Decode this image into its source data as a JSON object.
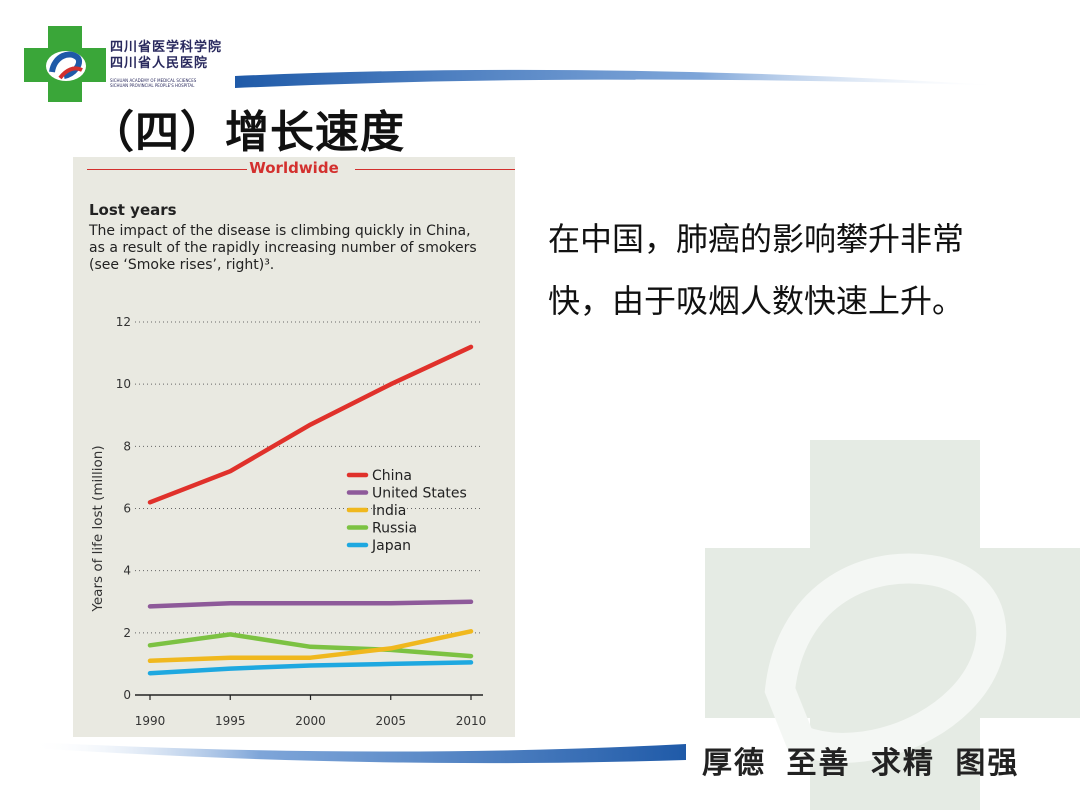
{
  "slide": {
    "heading": "（四）增长速度",
    "body": "在中国，肺癌的影响攀升非常快，由于吸烟人数快速上升。",
    "motto": "厚德 至善 求精 图强",
    "institution": {
      "line1": "四川省医学科学院",
      "line2": "四川省人民医院",
      "en1": "SICHUAN ACADEMY OF MEDICAL SCIENCES",
      "en2": "SICHUAN PROVINCIAL PEOPLE'S HOSPITAL"
    }
  },
  "colors": {
    "accent_green": "#3aa639",
    "brand_blue": "#1f5aa8",
    "worldwide_red": "#d3302e"
  },
  "chart_data": {
    "type": "line",
    "section_label": "Worldwide",
    "title": "Lost years",
    "subtitle": "The impact of the disease is climbing quickly in China, as a result of the rapidly increasing number of smokers (see ‘Smoke rises’, right)³.",
    "xlabel": "",
    "ylabel": "Years of life lost (million)",
    "x": [
      1990,
      1995,
      2000,
      2005,
      2010
    ],
    "x_ticks": [
      "1990",
      "1995",
      "2000",
      "2005",
      "2010"
    ],
    "y_ticks": [
      "0",
      "2",
      "4",
      "6",
      "8",
      "10",
      "12"
    ],
    "ylim": [
      0,
      12
    ],
    "grid": "dotted horizontal",
    "legend_position": "center-right",
    "series": [
      {
        "name": "China",
        "color": "#e0312b",
        "values": [
          6.2,
          7.2,
          8.7,
          10.0,
          11.2
        ]
      },
      {
        "name": "United States",
        "color": "#8e5a9a",
        "values": [
          2.85,
          2.95,
          2.95,
          2.95,
          3.0
        ]
      },
      {
        "name": "India",
        "color": "#f0b81e",
        "values": [
          1.1,
          1.2,
          1.2,
          1.5,
          2.05
        ]
      },
      {
        "name": "Russia",
        "color": "#7cc242",
        "values": [
          1.6,
          1.95,
          1.55,
          1.45,
          1.25
        ]
      },
      {
        "name": "Japan",
        "color": "#1ea8e0",
        "values": [
          0.7,
          0.85,
          0.95,
          1.0,
          1.05
        ]
      }
    ]
  }
}
